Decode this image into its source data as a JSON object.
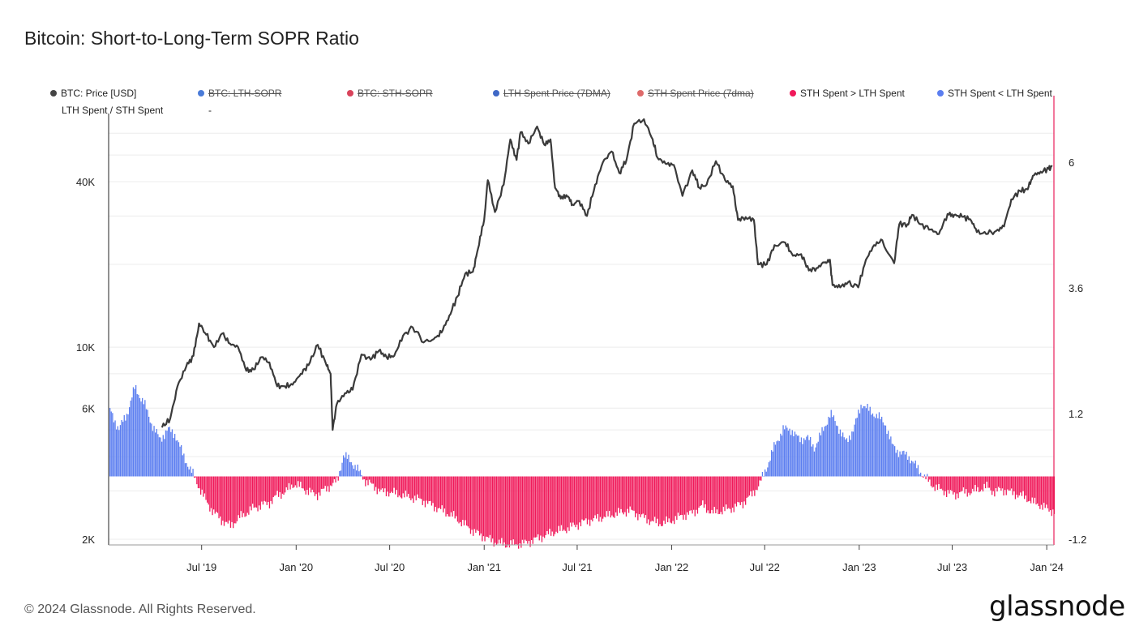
{
  "title": "Bitcoin: Short-to-Long-Term SOPR Ratio",
  "footer": "© 2024 Glassnode. All Rights Reserved.",
  "brand": "glassnode",
  "legend": [
    {
      "label": "BTC: Price [USD]",
      "color": "#444444",
      "active": true
    },
    {
      "label": "BTC: LTH-SOPR",
      "color": "#4a7bd8",
      "active": false
    },
    {
      "label": "BTC: STH-SOPR",
      "color": "#d9435b",
      "active": false
    },
    {
      "label": "LTH Spent Price (7DMA)",
      "color": "#3f68c6",
      "active": false
    },
    {
      "label": "STH Spent Price (7dma)",
      "color": "#de6a6a",
      "active": false
    },
    {
      "label": "STH Spent > LTH Spent",
      "color": "#f0195a",
      "active": true
    },
    {
      "label": "STH Spent < LTH Spent",
      "color": "#5b7ef0",
      "active": true
    }
  ],
  "legend_extra": {
    "label": "LTH Spent / STH Spent",
    "value": "-"
  },
  "chart_data": {
    "type": "line",
    "x_ticks": [
      "Jul '19",
      "Jan '20",
      "Jul '20",
      "Jan '21",
      "Jul '21",
      "Jan '22",
      "Jul '22",
      "Jan '23",
      "Jul '23",
      "Jan '24"
    ],
    "y_left": {
      "scale": "log",
      "ticks": [
        "2K",
        "6K",
        "10K",
        "40K"
      ],
      "tick_values": [
        2000,
        6000,
        10000,
        40000
      ]
    },
    "y_right": {
      "scale": "linear",
      "ticks": [
        "-1.2",
        "1.2",
        "3.6",
        "6"
      ],
      "tick_values": [
        -1.2,
        1.2,
        3.6,
        6
      ],
      "range": [
        -1.2,
        6.8
      ]
    },
    "price": {
      "name": "BTC: Price [USD]",
      "color": "#3a3a3a",
      "x": [
        "2019-04-15",
        "2019-05-01",
        "2019-05-15",
        "2019-06-01",
        "2019-06-15",
        "2019-06-26",
        "2019-07-10",
        "2019-07-25",
        "2019-08-10",
        "2019-08-25",
        "2019-09-10",
        "2019-09-26",
        "2019-10-10",
        "2019-10-26",
        "2019-11-10",
        "2019-11-25",
        "2019-12-10",
        "2019-12-25",
        "2020-01-10",
        "2020-01-25",
        "2020-02-12",
        "2020-02-28",
        "2020-03-08",
        "2020-03-12",
        "2020-03-20",
        "2020-04-05",
        "2020-04-20",
        "2020-05-07",
        "2020-05-25",
        "2020-06-10",
        "2020-06-25",
        "2020-07-10",
        "2020-07-27",
        "2020-08-15",
        "2020-09-05",
        "2020-09-25",
        "2020-10-10",
        "2020-10-25",
        "2020-11-10",
        "2020-11-25",
        "2020-12-10",
        "2020-12-20",
        "2021-01-01",
        "2021-01-08",
        "2021-01-22",
        "2021-02-08",
        "2021-02-21",
        "2021-03-05",
        "2021-03-13",
        "2021-03-28",
        "2021-04-14",
        "2021-04-28",
        "2021-05-10",
        "2021-05-19",
        "2021-05-30",
        "2021-06-12",
        "2021-06-22",
        "2021-07-05",
        "2021-07-20",
        "2021-08-05",
        "2021-08-20",
        "2021-09-06",
        "2021-09-21",
        "2021-10-05",
        "2021-10-20",
        "2021-11-08",
        "2021-11-25",
        "2021-12-04",
        "2021-12-20",
        "2022-01-05",
        "2022-01-22",
        "2022-02-10",
        "2022-02-24",
        "2022-03-10",
        "2022-03-28",
        "2022-04-15",
        "2022-04-30",
        "2022-05-10",
        "2022-05-25",
        "2022-06-10",
        "2022-06-18",
        "2022-07-05",
        "2022-07-20",
        "2022-08-10",
        "2022-08-25",
        "2022-09-10",
        "2022-09-25",
        "2022-10-10",
        "2022-10-25",
        "2022-11-05",
        "2022-11-10",
        "2022-11-25",
        "2022-12-10",
        "2022-12-30",
        "2023-01-14",
        "2023-01-30",
        "2023-02-15",
        "2023-03-10",
        "2023-03-20",
        "2023-04-05",
        "2023-04-14",
        "2023-05-01",
        "2023-05-20",
        "2023-06-05",
        "2023-06-22",
        "2023-07-05",
        "2023-07-20",
        "2023-08-05",
        "2023-08-18",
        "2023-09-05",
        "2023-09-25",
        "2023-10-10",
        "2023-10-24",
        "2023-11-10",
        "2023-11-25",
        "2023-12-05",
        "2023-12-20",
        "2024-01-05",
        "2024-01-12"
      ],
      "y": [
        5100,
        5500,
        7200,
        8500,
        9300,
        12200,
        11100,
        10000,
        11200,
        10300,
        10000,
        8200,
        8300,
        9200,
        8800,
        7200,
        7200,
        7300,
        8000,
        8600,
        10200,
        8700,
        8000,
        5000,
        6200,
        6800,
        7000,
        9400,
        9000,
        9700,
        9200,
        9300,
        11000,
        11800,
        10400,
        10700,
        11300,
        13000,
        15300,
        18500,
        18800,
        22800,
        29000,
        40500,
        31000,
        39000,
        57000,
        48000,
        60500,
        55000,
        63500,
        54500,
        57000,
        38000,
        34700,
        35300,
        33000,
        34000,
        30000,
        39000,
        47000,
        51500,
        43000,
        48000,
        65000,
        67500,
        57000,
        49000,
        46500,
        46000,
        35500,
        44000,
        38000,
        39000,
        47500,
        40500,
        38500,
        29000,
        29700,
        29000,
        20000,
        20000,
        23500,
        24000,
        21500,
        21800,
        19000,
        19400,
        20300,
        20800,
        16800,
        16500,
        17200,
        16500,
        20800,
        23500,
        24500,
        20200,
        28000,
        28000,
        30300,
        28000,
        26800,
        25800,
        30500,
        30300,
        29800,
        29200,
        26200,
        25800,
        26500,
        27500,
        34500,
        37000,
        37500,
        42000,
        43500,
        44500,
        45500
      ]
    },
    "ratio": {
      "name": "LTH Spent / STH Spent",
      "pos_color": "#5b7ef0",
      "neg_color": "#f0195a",
      "series_names": {
        "pos": "STH Spent < LTH Spent",
        "neg": "STH Spent > LTH Spent"
      },
      "x": [
        "2019-01-01",
        "2019-01-20",
        "2019-02-05",
        "2019-02-20",
        "2019-03-10",
        "2019-03-25",
        "2019-04-10",
        "2019-04-25",
        "2019-05-10",
        "2019-05-25",
        "2019-06-10",
        "2019-06-25",
        "2019-07-10",
        "2019-07-25",
        "2019-08-10",
        "2019-08-25",
        "2019-09-10",
        "2019-09-25",
        "2019-10-10",
        "2019-10-25",
        "2019-11-10",
        "2019-11-25",
        "2019-12-10",
        "2019-12-25",
        "2020-01-10",
        "2020-01-25",
        "2020-02-10",
        "2020-02-25",
        "2020-03-10",
        "2020-03-20",
        "2020-04-01",
        "2020-04-15",
        "2020-05-01",
        "2020-05-15",
        "2020-06-01",
        "2020-06-15",
        "2020-07-01",
        "2020-07-20",
        "2020-08-10",
        "2020-08-30",
        "2020-09-20",
        "2020-10-10",
        "2020-10-30",
        "2020-11-20",
        "2020-12-10",
        "2020-12-30",
        "2021-01-20",
        "2021-02-10",
        "2021-03-01",
        "2021-03-20",
        "2021-04-10",
        "2021-05-01",
        "2021-05-20",
        "2021-06-10",
        "2021-06-30",
        "2021-07-20",
        "2021-08-10",
        "2021-08-30",
        "2021-09-20",
        "2021-10-10",
        "2021-10-30",
        "2021-11-20",
        "2021-12-10",
        "2021-12-30",
        "2022-01-20",
        "2022-02-10",
        "2022-03-01",
        "2022-03-20",
        "2022-04-10",
        "2022-04-30",
        "2022-05-20",
        "2022-06-05",
        "2022-06-20",
        "2022-07-05",
        "2022-07-20",
        "2022-08-05",
        "2022-08-20",
        "2022-09-05",
        "2022-09-20",
        "2022-10-05",
        "2022-10-20",
        "2022-11-05",
        "2022-11-20",
        "2022-12-05",
        "2022-12-20",
        "2023-01-05",
        "2023-01-20",
        "2023-02-05",
        "2023-02-20",
        "2023-03-05",
        "2023-03-20",
        "2023-04-05",
        "2023-04-20",
        "2023-05-05",
        "2023-05-20",
        "2023-06-05",
        "2023-06-20",
        "2023-07-05",
        "2023-07-20",
        "2023-08-05",
        "2023-08-20",
        "2023-09-05",
        "2023-09-20",
        "2023-10-05",
        "2023-10-20",
        "2023-11-05",
        "2023-11-20",
        "2023-12-05",
        "2023-12-20",
        "2024-01-05",
        "2024-01-12"
      ],
      "y": [
        1.3,
        0.9,
        1.2,
        1.7,
        1.4,
        1.0,
        0.7,
        0.9,
        0.8,
        0.4,
        0.1,
        -0.2,
        -0.5,
        -0.7,
        -0.85,
        -0.95,
        -0.8,
        -0.7,
        -0.6,
        -0.55,
        -0.5,
        -0.35,
        -0.3,
        -0.15,
        -0.2,
        -0.3,
        -0.35,
        -0.25,
        -0.15,
        -0.1,
        0.4,
        0.3,
        0.1,
        -0.1,
        -0.2,
        -0.3,
        -0.3,
        -0.35,
        -0.4,
        -0.45,
        -0.55,
        -0.65,
        -0.75,
        -0.9,
        -1.05,
        -1.15,
        -1.25,
        -1.3,
        -1.3,
        -1.28,
        -1.2,
        -1.12,
        -1.05,
        -1.0,
        -0.92,
        -0.85,
        -0.8,
        -0.75,
        -0.7,
        -0.65,
        -0.75,
        -0.85,
        -0.9,
        -0.85,
        -0.75,
        -0.7,
        -0.55,
        -0.7,
        -0.65,
        -0.6,
        -0.5,
        -0.35,
        -0.15,
        0.2,
        0.6,
        0.9,
        0.9,
        0.7,
        0.75,
        0.55,
        0.85,
        1.2,
        0.95,
        0.65,
        0.9,
        1.4,
        1.25,
        1.15,
        1.0,
        0.6,
        0.45,
        0.4,
        0.2,
        0.02,
        -0.15,
        -0.25,
        -0.3,
        -0.35,
        -0.3,
        -0.3,
        -0.25,
        -0.2,
        -0.3,
        -0.25,
        -0.3,
        -0.35,
        -0.4,
        -0.5,
        -0.55,
        -0.65,
        -0.65
      ]
    }
  }
}
